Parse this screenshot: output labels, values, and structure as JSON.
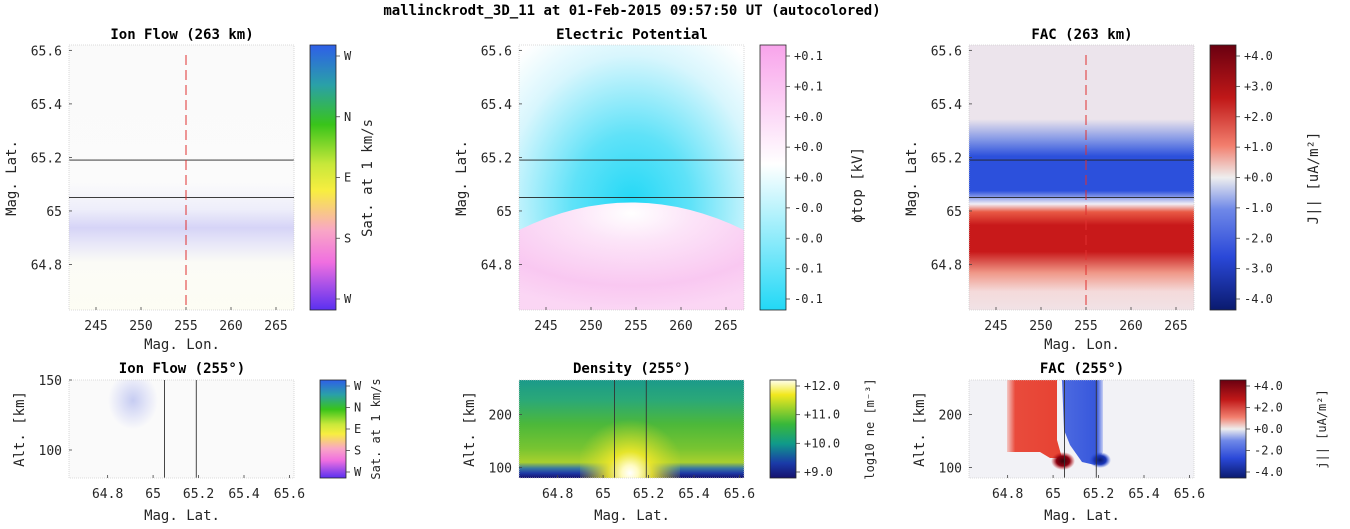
{
  "figure_title": "mallinckrodt_3D_11 at 01-Feb-2015 09:57:50 UT (autocolored)",
  "chart_data": [
    {
      "id": "ion_flow_top",
      "type": "heatmap",
      "title": "Ion Flow (263 km)",
      "xlabel": "Mag. Lon.",
      "ylabel": "Mag. Lat.",
      "xlim": [
        242,
        267
      ],
      "ylim": [
        64.63,
        65.62
      ],
      "xticks": [
        245,
        250,
        255,
        260,
        265
      ],
      "yticks": [
        64.8,
        65,
        65.2,
        65.4,
        65.6
      ],
      "yticklabels": [
        "64.8",
        "65",
        "65.2",
        "65.4",
        "65.6"
      ],
      "hlines": [
        65.05,
        65.19
      ],
      "vline": 255,
      "colorbar": {
        "label": "Sat. at 1 km/s",
        "ticks": [
          "W",
          "N",
          "E",
          "S",
          "W"
        ],
        "colors": [
          "#2e5fe8",
          "#2fb0a0",
          "#39c41a",
          "#f0ec3c",
          "#f87bd6",
          "#b84af0",
          "#5a30f0"
        ]
      },
      "bands": [
        {
          "lat_from": 65.05,
          "lat_to": 65.2,
          "color": "#f3f3fb"
        },
        {
          "lat_from": 64.92,
          "lat_to": 65.02,
          "color": "#d5d3f7"
        },
        {
          "lat_from": 64.63,
          "lat_to": 64.9,
          "color": "#fdfdf4"
        }
      ]
    },
    {
      "id": "electric_potential",
      "type": "heatmap",
      "title": "Electric Potential",
      "xlabel": "",
      "ylabel": "Mag. Lat.",
      "xlim": [
        242,
        267
      ],
      "ylim": [
        64.63,
        65.62
      ],
      "xticks": [
        245,
        250,
        255,
        260,
        265
      ],
      "yticks": [
        64.8,
        65,
        65.2,
        65.4,
        65.6
      ],
      "yticklabels": [
        "64.8",
        "65",
        "65.2",
        "65.4",
        "65.6"
      ],
      "hlines": [
        65.05,
        65.19
      ],
      "colorbar": {
        "label": "ϕtop [kV]",
        "ticks": [
          "+0.1",
          "+0.1",
          "+0.0",
          "+0.0",
          "+0.0",
          "-0.0",
          "-0.0",
          "-0.1",
          "-0.1"
        ],
        "colors": [
          "#f8a8ec",
          "#ffffff",
          "#22d8f6"
        ]
      }
    },
    {
      "id": "fac_top",
      "type": "heatmap",
      "title": "FAC (263 km)",
      "xlabel": "Mag. Lon.",
      "ylabel": "Mag. Lat.",
      "xlim": [
        242,
        267
      ],
      "ylim": [
        64.63,
        65.62
      ],
      "xticks": [
        245,
        250,
        255,
        260,
        265
      ],
      "yticks": [
        64.8,
        65,
        65.2,
        65.4,
        65.6
      ],
      "yticklabels": [
        "64.8",
        "65",
        "65.2",
        "65.4",
        "65.6"
      ],
      "hlines": [
        65.05,
        65.19
      ],
      "vline": 255,
      "colorbar": {
        "label": "J|| [uA/m²]",
        "ticks": [
          "+4.0",
          "+3.0",
          "+2.0",
          "+1.0",
          "+0.0",
          "-1.0",
          "-2.0",
          "-3.0",
          "-4.0"
        ],
        "colors": [
          "#6a0010",
          "#c01818",
          "#f27f6e",
          "#eeeeee",
          "#6f88e8",
          "#2a48d8",
          "#0a1a6e"
        ]
      }
    },
    {
      "id": "ion_flow_slice",
      "type": "heatmap",
      "title": "Ion Flow (255°)",
      "xlabel": "Mag. Lat.",
      "ylabel": "Alt. [km]",
      "xlim": [
        64.63,
        65.62
      ],
      "ylim": [
        80,
        150
      ],
      "xticks": [
        64.8,
        65,
        65.2,
        65.4,
        65.6
      ],
      "xticklabels": [
        "64.8",
        "65",
        "65.2",
        "65.4",
        "65.6"
      ],
      "yticks": [
        100,
        150
      ],
      "vlines": [
        65.05,
        65.19
      ],
      "colorbar": {
        "label": "Sat. at 1 km/s",
        "ticks": [
          "W",
          "N",
          "E",
          "S",
          "W"
        ]
      }
    },
    {
      "id": "density_slice",
      "type": "heatmap",
      "title": "Density (255°)",
      "xlabel": "Mag. Lat.",
      "ylabel": "Alt. [km]",
      "xlim": [
        64.63,
        65.62
      ],
      "ylim": [
        80,
        265
      ],
      "xticks": [
        64.8,
        65,
        65.2,
        65.4,
        65.6
      ],
      "xticklabels": [
        "64.8",
        "65",
        "65.2",
        "65.4",
        "65.6"
      ],
      "yticks": [
        100,
        200
      ],
      "vlines": [
        65.05,
        65.19
      ],
      "colorbar": {
        "label": "log10 ne [m⁻³]",
        "ticks": [
          "+12.0",
          "+11.0",
          "+10.0",
          "+9.0"
        ],
        "colors": [
          "#fffff0",
          "#f2e81e",
          "#38b83a",
          "#109a8a",
          "#1a3aa8",
          "#16126e"
        ]
      }
    },
    {
      "id": "fac_slice",
      "type": "heatmap",
      "title": "FAC (255°)",
      "xlabel": "Mag. Lat.",
      "ylabel": "Alt. [km]",
      "xlim": [
        64.63,
        65.62
      ],
      "ylim": [
        80,
        265
      ],
      "xticks": [
        64.8,
        65,
        65.2,
        65.4,
        65.6
      ],
      "xticklabels": [
        "64.8",
        "65",
        "65.2",
        "65.4",
        "65.6"
      ],
      "yticks": [
        100,
        200
      ],
      "vlines": [
        65.05,
        65.19
      ],
      "colorbar": {
        "label": "j|| [uA/m²]",
        "ticks": [
          "+4.0",
          "+2.0",
          "+0.0",
          "-2.0",
          "-4.0"
        ],
        "colors": [
          "#6a0010",
          "#c01818",
          "#f08070",
          "#eeeeee",
          "#7088e8",
          "#2a48d8",
          "#0a1a6e"
        ]
      }
    }
  ]
}
